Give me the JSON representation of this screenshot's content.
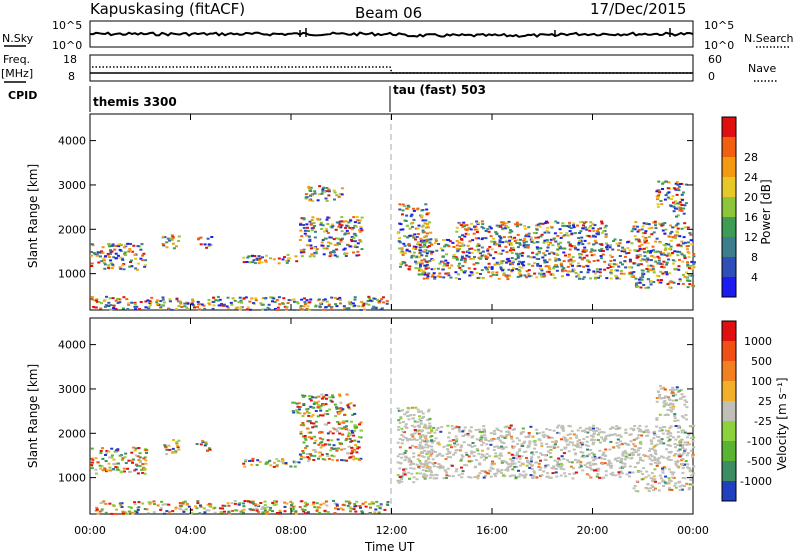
{
  "header": {
    "station": "Kapuskasing (fitACF)",
    "beam": "Beam 06",
    "date": "17/Dec/2015"
  },
  "top_panels": {
    "nsky_label": "N.Sky",
    "nsky_ticks": [
      "10^5",
      "10^0"
    ],
    "nsearch_label": "N.Search",
    "nsearch_ticks": [
      "10^5",
      "10^0"
    ],
    "freq_label": "Freq.",
    "freq_unit": "[MHz]",
    "freq_ticks": [
      "18",
      "8"
    ],
    "nave_label": "Nave",
    "nave_ticks": [
      "60",
      "0"
    ],
    "cpid_label": "CPID",
    "cpid_modes": [
      "themis 3300",
      "tau (fast) 503"
    ]
  },
  "x_axis": {
    "label": "Time UT",
    "ticks": [
      "00:00",
      "04:00",
      "08:00",
      "12:00",
      "16:00",
      "20:00",
      "00:00"
    ]
  },
  "chart_data": [
    {
      "type": "heatmap",
      "panel": "power",
      "ylabel": "Slant Range [km]",
      "yticks": [
        "1000",
        "2000",
        "3000",
        "4000"
      ],
      "ylim": [
        180,
        4600
      ],
      "xlim_hours": [
        0,
        24
      ],
      "colorbar_label": "Power [dB]",
      "colorbar_ticks": [
        "4",
        "8",
        "12",
        "16",
        "20",
        "24",
        "28"
      ],
      "colors": [
        "#1c1cf0",
        "#2e4fb8",
        "#3c7e8c",
        "#3e9c55",
        "#8cc43a",
        "#e6c828",
        "#f49a10",
        "#f06010",
        "#e01010"
      ],
      "regions": [
        {
          "t": [
            0.0,
            2.2
          ],
          "r": [
            1100,
            1700
          ]
        },
        {
          "t": [
            2.8,
            3.5
          ],
          "r": [
            1550,
            1900
          ]
        },
        {
          "t": [
            4.2,
            4.8
          ],
          "r": [
            1600,
            1850
          ]
        },
        {
          "t": [
            6.0,
            8.3
          ],
          "r": [
            1250,
            1450
          ]
        },
        {
          "t": [
            8.3,
            10.8
          ],
          "r": [
            1400,
            2300
          ]
        },
        {
          "t": [
            8.5,
            10.0
          ],
          "r": [
            2650,
            3000
          ]
        },
        {
          "t": [
            0.0,
            11.8
          ],
          "r": [
            200,
            500
          ]
        },
        {
          "t": [
            12.2,
            13.5
          ],
          "r": [
            1100,
            2600
          ]
        },
        {
          "t": [
            13.0,
            21.5
          ],
          "r": [
            900,
            1800
          ]
        },
        {
          "t": [
            14.5,
            20.5
          ],
          "r": [
            1800,
            2200
          ]
        },
        {
          "t": [
            21.5,
            24.0
          ],
          "r": [
            700,
            2200
          ]
        },
        {
          "t": [
            22.5,
            23.7
          ],
          "r": [
            2300,
            3100
          ]
        }
      ]
    },
    {
      "type": "heatmap",
      "panel": "velocity",
      "ylabel": "Slant Range [km]",
      "yticks": [
        "1000",
        "2000",
        "3000",
        "4000"
      ],
      "ylim": [
        180,
        4600
      ],
      "xlim_hours": [
        0,
        24
      ],
      "colorbar_label": "Velocity [m s⁻¹]",
      "colorbar_ticks": [
        "1000",
        "500",
        "100",
        "25",
        "-25",
        "-100",
        "-500",
        "-1000"
      ],
      "colors": [
        "#2040c0",
        "#3c8c64",
        "#5ab432",
        "#8cd23c",
        "#c0c0b8",
        "#f2b028",
        "#f08020",
        "#f05014",
        "#e01010"
      ],
      "regions": [
        {
          "t": [
            0.0,
            2.2
          ],
          "r": [
            1100,
            1700
          ]
        },
        {
          "t": [
            2.8,
            3.5
          ],
          "r": [
            1550,
            1900
          ]
        },
        {
          "t": [
            4.2,
            4.8
          ],
          "r": [
            1600,
            1850
          ]
        },
        {
          "t": [
            6.0,
            8.3
          ],
          "r": [
            1250,
            1450
          ]
        },
        {
          "t": [
            8.3,
            10.8
          ],
          "r": [
            1400,
            2300
          ]
        },
        {
          "t": [
            8.0,
            10.5
          ],
          "r": [
            2400,
            2900
          ]
        },
        {
          "t": [
            0.0,
            11.8
          ],
          "r": [
            200,
            500
          ]
        },
        {
          "t": [
            12.2,
            13.5
          ],
          "r": [
            900,
            2600
          ]
        },
        {
          "t": [
            13.0,
            21.5
          ],
          "r": [
            1000,
            2200
          ]
        },
        {
          "t": [
            21.5,
            24.0
          ],
          "r": [
            700,
            2200
          ]
        },
        {
          "t": [
            22.5,
            23.7
          ],
          "r": [
            2300,
            3100
          ]
        }
      ]
    }
  ]
}
